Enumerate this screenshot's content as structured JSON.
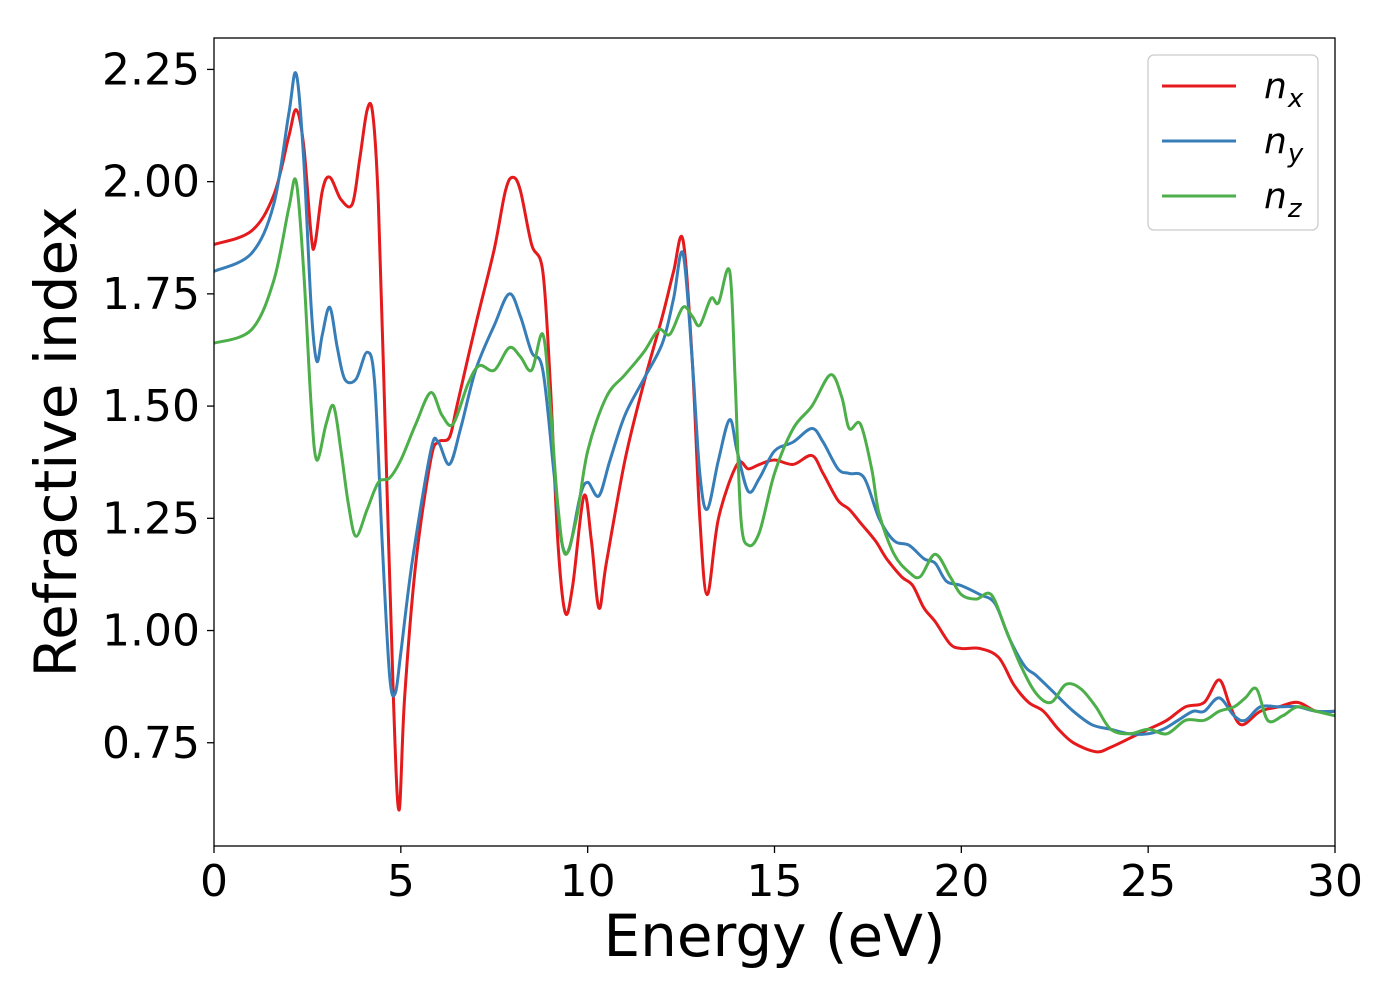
{
  "chart_data": {
    "type": "line",
    "title": "",
    "xlabel": "Energy (eV)",
    "ylabel": "Refractive index",
    "xlim": [
      0,
      30
    ],
    "ylim": [
      0.52,
      2.32
    ],
    "xticks": [
      0,
      5,
      10,
      15,
      20,
      25,
      30
    ],
    "xtick_labels": [
      "0",
      "5",
      "10",
      "15",
      "20",
      "25",
      "30"
    ],
    "yticks": [
      0.75,
      1.0,
      1.25,
      1.5,
      1.75,
      2.0,
      2.25
    ],
    "ytick_labels": [
      "0.75",
      "1.00",
      "1.25",
      "1.50",
      "1.75",
      "2.00",
      "2.25"
    ],
    "grid": false,
    "legend_position": "top-right",
    "series": [
      {
        "name": "n_x",
        "label_base": "n",
        "label_sub": "x",
        "color": "#e41a1c",
        "points": [
          [
            0,
            1.86
          ],
          [
            1,
            1.89
          ],
          [
            1.6,
            1.97
          ],
          [
            2.0,
            2.1
          ],
          [
            2.2,
            2.16
          ],
          [
            2.4,
            2.08
          ],
          [
            2.6,
            1.88
          ],
          [
            2.7,
            1.86
          ],
          [
            2.9,
            1.98
          ],
          [
            3.1,
            2.01
          ],
          [
            3.4,
            1.96
          ],
          [
            3.7,
            1.95
          ],
          [
            3.9,
            2.05
          ],
          [
            4.1,
            2.16
          ],
          [
            4.25,
            2.15
          ],
          [
            4.4,
            1.95
          ],
          [
            4.6,
            1.4
          ],
          [
            4.8,
            0.85
          ],
          [
            4.95,
            0.6
          ],
          [
            5.1,
            0.85
          ],
          [
            5.4,
            1.15
          ],
          [
            5.8,
            1.38
          ],
          [
            6.0,
            1.42
          ],
          [
            6.3,
            1.43
          ],
          [
            6.5,
            1.5
          ],
          [
            7.0,
            1.68
          ],
          [
            7.5,
            1.85
          ],
          [
            7.8,
            1.98
          ],
          [
            8.0,
            2.01
          ],
          [
            8.2,
            1.98
          ],
          [
            8.5,
            1.86
          ],
          [
            8.8,
            1.8
          ],
          [
            9.0,
            1.55
          ],
          [
            9.2,
            1.2
          ],
          [
            9.4,
            1.04
          ],
          [
            9.6,
            1.1
          ],
          [
            9.9,
            1.3
          ],
          [
            10.1,
            1.2
          ],
          [
            10.3,
            1.05
          ],
          [
            10.5,
            1.15
          ],
          [
            11.0,
            1.38
          ],
          [
            11.5,
            1.55
          ],
          [
            12.0,
            1.7
          ],
          [
            12.3,
            1.8
          ],
          [
            12.55,
            1.87
          ],
          [
            12.8,
            1.6
          ],
          [
            13.0,
            1.25
          ],
          [
            13.2,
            1.08
          ],
          [
            13.5,
            1.25
          ],
          [
            14.0,
            1.37
          ],
          [
            14.3,
            1.36
          ],
          [
            14.6,
            1.37
          ],
          [
            15.0,
            1.38
          ],
          [
            15.5,
            1.37
          ],
          [
            16.0,
            1.39
          ],
          [
            16.3,
            1.35
          ],
          [
            16.7,
            1.29
          ],
          [
            17.0,
            1.27
          ],
          [
            17.3,
            1.24
          ],
          [
            17.7,
            1.2
          ],
          [
            18.0,
            1.16
          ],
          [
            18.4,
            1.12
          ],
          [
            18.7,
            1.1
          ],
          [
            19.0,
            1.05
          ],
          [
            19.3,
            1.02
          ],
          [
            19.7,
            0.97
          ],
          [
            20.0,
            0.96
          ],
          [
            20.5,
            0.96
          ],
          [
            21.0,
            0.94
          ],
          [
            21.4,
            0.88
          ],
          [
            21.8,
            0.84
          ],
          [
            22.2,
            0.82
          ],
          [
            22.6,
            0.78
          ],
          [
            23.0,
            0.75
          ],
          [
            23.6,
            0.73
          ],
          [
            24.0,
            0.74
          ],
          [
            24.5,
            0.76
          ],
          [
            25.0,
            0.78
          ],
          [
            25.5,
            0.8
          ],
          [
            26.0,
            0.83
          ],
          [
            26.5,
            0.84
          ],
          [
            26.9,
            0.89
          ],
          [
            27.2,
            0.83
          ],
          [
            27.5,
            0.79
          ],
          [
            28.0,
            0.82
          ],
          [
            28.5,
            0.83
          ],
          [
            29.0,
            0.84
          ],
          [
            29.5,
            0.82
          ],
          [
            30,
            0.82
          ]
        ]
      },
      {
        "name": "n_y",
        "label_base": "n",
        "label_sub": "y",
        "color": "#377eb8",
        "points": [
          [
            0,
            1.8
          ],
          [
            1,
            1.84
          ],
          [
            1.6,
            1.95
          ],
          [
            2.0,
            2.15
          ],
          [
            2.2,
            2.24
          ],
          [
            2.4,
            2.05
          ],
          [
            2.6,
            1.72
          ],
          [
            2.75,
            1.6
          ],
          [
            2.9,
            1.66
          ],
          [
            3.1,
            1.72
          ],
          [
            3.3,
            1.63
          ],
          [
            3.5,
            1.56
          ],
          [
            3.8,
            1.56
          ],
          [
            4.1,
            1.62
          ],
          [
            4.3,
            1.55
          ],
          [
            4.5,
            1.2
          ],
          [
            4.7,
            0.9
          ],
          [
            4.85,
            0.86
          ],
          [
            5.0,
            0.95
          ],
          [
            5.3,
            1.15
          ],
          [
            5.8,
            1.4
          ],
          [
            6.0,
            1.42
          ],
          [
            6.3,
            1.37
          ],
          [
            6.6,
            1.45
          ],
          [
            7.0,
            1.58
          ],
          [
            7.5,
            1.68
          ],
          [
            7.9,
            1.75
          ],
          [
            8.2,
            1.7
          ],
          [
            8.5,
            1.62
          ],
          [
            8.8,
            1.58
          ],
          [
            9.1,
            1.35
          ],
          [
            9.3,
            1.2
          ],
          [
            9.5,
            1.18
          ],
          [
            9.8,
            1.3
          ],
          [
            10.0,
            1.33
          ],
          [
            10.3,
            1.3
          ],
          [
            10.6,
            1.38
          ],
          [
            11.0,
            1.48
          ],
          [
            11.5,
            1.56
          ],
          [
            12.0,
            1.64
          ],
          [
            12.3,
            1.74
          ],
          [
            12.55,
            1.84
          ],
          [
            12.8,
            1.6
          ],
          [
            13.0,
            1.35
          ],
          [
            13.2,
            1.27
          ],
          [
            13.5,
            1.38
          ],
          [
            13.8,
            1.47
          ],
          [
            14.0,
            1.4
          ],
          [
            14.3,
            1.31
          ],
          [
            14.6,
            1.34
          ],
          [
            15.0,
            1.4
          ],
          [
            15.5,
            1.42
          ],
          [
            16.0,
            1.45
          ],
          [
            16.3,
            1.42
          ],
          [
            16.7,
            1.36
          ],
          [
            17.0,
            1.35
          ],
          [
            17.4,
            1.34
          ],
          [
            17.8,
            1.25
          ],
          [
            18.2,
            1.2
          ],
          [
            18.6,
            1.19
          ],
          [
            19.0,
            1.16
          ],
          [
            19.3,
            1.15
          ],
          [
            19.6,
            1.11
          ],
          [
            20.0,
            1.1
          ],
          [
            20.5,
            1.08
          ],
          [
            20.9,
            1.06
          ],
          [
            21.3,
            0.98
          ],
          [
            21.7,
            0.92
          ],
          [
            22.0,
            0.9
          ],
          [
            22.5,
            0.86
          ],
          [
            23.0,
            0.82
          ],
          [
            23.5,
            0.79
          ],
          [
            24.0,
            0.78
          ],
          [
            24.5,
            0.77
          ],
          [
            25.0,
            0.77
          ],
          [
            25.4,
            0.78
          ],
          [
            25.8,
            0.8
          ],
          [
            26.2,
            0.82
          ],
          [
            26.5,
            0.82
          ],
          [
            26.9,
            0.85
          ],
          [
            27.3,
            0.81
          ],
          [
            27.6,
            0.8
          ],
          [
            28.0,
            0.83
          ],
          [
            28.5,
            0.83
          ],
          [
            29.0,
            0.83
          ],
          [
            29.5,
            0.82
          ],
          [
            30,
            0.82
          ]
        ]
      },
      {
        "name": "n_z",
        "label_base": "n",
        "label_sub": "z",
        "color": "#4daf4a",
        "points": [
          [
            0,
            1.64
          ],
          [
            1,
            1.67
          ],
          [
            1.6,
            1.78
          ],
          [
            2.0,
            1.94
          ],
          [
            2.2,
            2.0
          ],
          [
            2.4,
            1.8
          ],
          [
            2.6,
            1.5
          ],
          [
            2.75,
            1.38
          ],
          [
            3.0,
            1.46
          ],
          [
            3.2,
            1.5
          ],
          [
            3.4,
            1.4
          ],
          [
            3.6,
            1.28
          ],
          [
            3.8,
            1.21
          ],
          [
            4.1,
            1.27
          ],
          [
            4.4,
            1.33
          ],
          [
            4.7,
            1.34
          ],
          [
            5.0,
            1.38
          ],
          [
            5.4,
            1.46
          ],
          [
            5.8,
            1.53
          ],
          [
            6.1,
            1.48
          ],
          [
            6.4,
            1.46
          ],
          [
            6.8,
            1.55
          ],
          [
            7.1,
            1.59
          ],
          [
            7.5,
            1.58
          ],
          [
            7.9,
            1.63
          ],
          [
            8.2,
            1.61
          ],
          [
            8.5,
            1.58
          ],
          [
            8.8,
            1.66
          ],
          [
            9.0,
            1.5
          ],
          [
            9.2,
            1.28
          ],
          [
            9.4,
            1.17
          ],
          [
            9.7,
            1.25
          ],
          [
            10.0,
            1.4
          ],
          [
            10.5,
            1.52
          ],
          [
            11.0,
            1.57
          ],
          [
            11.5,
            1.62
          ],
          [
            11.9,
            1.67
          ],
          [
            12.2,
            1.66
          ],
          [
            12.55,
            1.72
          ],
          [
            12.8,
            1.7
          ],
          [
            13.0,
            1.68
          ],
          [
            13.3,
            1.74
          ],
          [
            13.5,
            1.73
          ],
          [
            13.8,
            1.8
          ],
          [
            13.95,
            1.55
          ],
          [
            14.1,
            1.25
          ],
          [
            14.3,
            1.19
          ],
          [
            14.6,
            1.22
          ],
          [
            15.0,
            1.35
          ],
          [
            15.5,
            1.45
          ],
          [
            16.0,
            1.5
          ],
          [
            16.5,
            1.57
          ],
          [
            16.8,
            1.52
          ],
          [
            17.0,
            1.45
          ],
          [
            17.3,
            1.46
          ],
          [
            17.6,
            1.36
          ],
          [
            17.8,
            1.26
          ],
          [
            18.2,
            1.17
          ],
          [
            18.6,
            1.13
          ],
          [
            18.9,
            1.12
          ],
          [
            19.3,
            1.17
          ],
          [
            19.7,
            1.12
          ],
          [
            20.0,
            1.08
          ],
          [
            20.4,
            1.07
          ],
          [
            20.8,
            1.08
          ],
          [
            21.2,
            1.0
          ],
          [
            21.6,
            0.92
          ],
          [
            22.0,
            0.86
          ],
          [
            22.4,
            0.84
          ],
          [
            22.8,
            0.88
          ],
          [
            23.2,
            0.87
          ],
          [
            23.6,
            0.83
          ],
          [
            24.0,
            0.78
          ],
          [
            24.5,
            0.77
          ],
          [
            25.0,
            0.78
          ],
          [
            25.5,
            0.77
          ],
          [
            26.0,
            0.8
          ],
          [
            26.5,
            0.8
          ],
          [
            26.9,
            0.82
          ],
          [
            27.3,
            0.83
          ],
          [
            27.6,
            0.85
          ],
          [
            27.9,
            0.87
          ],
          [
            28.2,
            0.8
          ],
          [
            28.6,
            0.81
          ],
          [
            29.0,
            0.83
          ],
          [
            29.5,
            0.82
          ],
          [
            30,
            0.81
          ]
        ]
      }
    ]
  }
}
